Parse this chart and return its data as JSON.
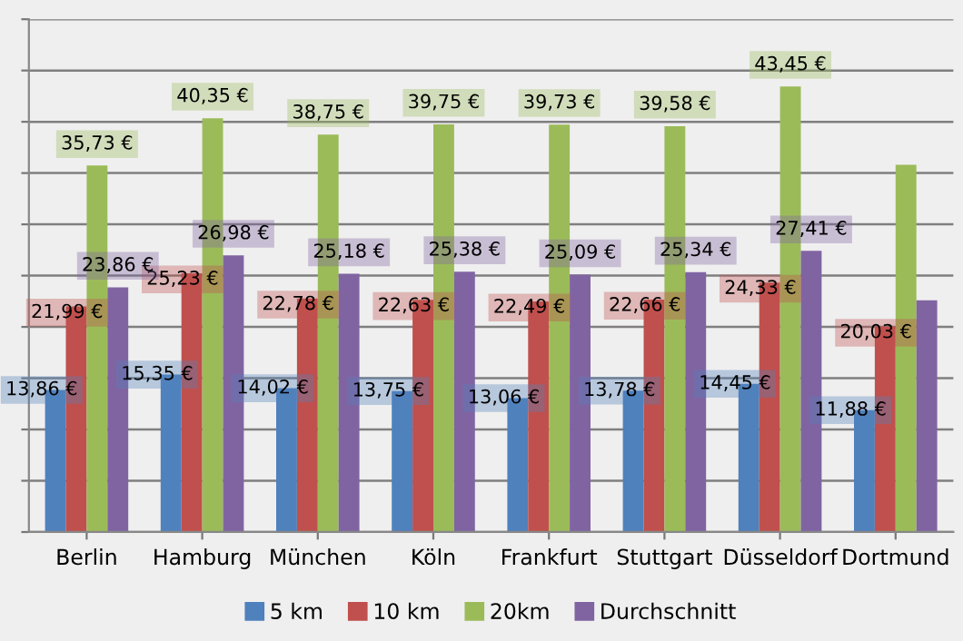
{
  "chart_data": {
    "type": "bar",
    "categories": [
      "Berlin",
      "Hamburg",
      "München",
      "Köln",
      "Frankfurt",
      "Stuttgart",
      "Düsseldorf",
      "Dortmund"
    ],
    "series": [
      {
        "name": "5 km",
        "color": "#4f81bd",
        "values": [
          13.86,
          15.35,
          14.02,
          13.75,
          13.06,
          13.78,
          14.45,
          11.88
        ],
        "value_labels": [
          "13,86 €",
          "15,35 €",
          "14,02 €",
          "13,75 €",
          "13,06 €",
          "13,78 €",
          "14,45 €",
          "11,88 €"
        ]
      },
      {
        "name": "10 km",
        "color": "#c0504d",
        "values": [
          21.99,
          25.23,
          22.78,
          22.63,
          22.49,
          22.66,
          24.33,
          20.03
        ],
        "value_labels": [
          "21,99 €",
          "25,23 €",
          "22,78 €",
          "22,63 €",
          "22,49 €",
          "22,66 €",
          "24,33 €",
          "20,03 €"
        ]
      },
      {
        "name": "20km",
        "color": "#9bbb59",
        "values": [
          35.73,
          40.35,
          38.75,
          39.75,
          39.73,
          39.58,
          43.45,
          35.8
        ],
        "value_labels": [
          "35,73 €",
          "40,35 €",
          "38,75 €",
          "39,75 €",
          "39,73 €",
          "39,58 €",
          "43,45 €",
          null
        ]
      },
      {
        "name": "Durchschnitt",
        "color": "#8064a2",
        "values": [
          23.86,
          26.98,
          25.18,
          25.38,
          25.09,
          25.34,
          27.41,
          22.6
        ],
        "value_labels": [
          "23,86 €",
          "26,98 €",
          "25,18 €",
          "25,38 €",
          "25,09 €",
          "25,34 €",
          "27,41 €",
          null
        ]
      }
    ],
    "ylim": [
      0,
      50
    ],
    "yticks": [
      {
        "value": 0,
        "label": null
      },
      {
        "value": 5,
        "label": null
      },
      {
        "value": 10,
        "label": null
      },
      {
        "value": 15,
        "label": null
      },
      {
        "value": 20,
        "label": null
      },
      {
        "value": 25,
        "label": null
      },
      {
        "value": 30,
        "label": null
      },
      {
        "value": 35,
        "label": null
      },
      {
        "value": 40,
        "label": null
      },
      {
        "value": 45,
        "label": null
      },
      {
        "value": 50,
        "label": null
      }
    ],
    "tick_labels": "x",
    "grid": "y",
    "legend": "bottom"
  }
}
